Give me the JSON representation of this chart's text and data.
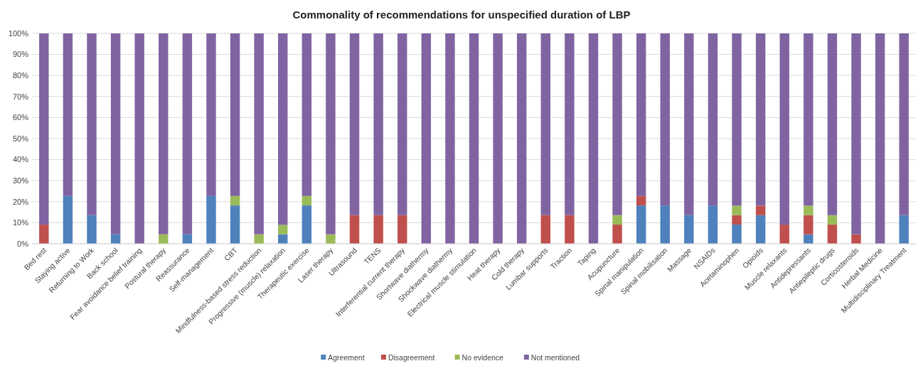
{
  "chart_data": {
    "type": "bar",
    "title": "Commonality of recommendations for unspecified duration of LBP",
    "stacked": true,
    "categories": [
      "Bed rest",
      "Staying active",
      "Returning to Work",
      "Back school",
      "Fear avoidance belief training",
      "Postural therapy",
      "Reassurance",
      "Self-management",
      "CBT",
      "Mindfulness-based stress reduction",
      "Progressive (muscle) relaxation",
      "Therapeutic exercise",
      "Laser therapy",
      "Ultrasound",
      "TENS",
      "Interferential current therapy",
      "Shortwave diathermy",
      "Shockwave diathermy",
      "Electrical muscle stimulation",
      "Heat therapy",
      "Cold therapy",
      "Lumbar supports",
      "Traction",
      "Taping",
      "Acupuncture",
      "Spinal manipulation",
      "Spinal mobilisation",
      "Massage",
      "NSAIDs",
      "Acetaminophen",
      "Opioids",
      "Muscle relaxants",
      "Antidepressants",
      "Antiepileptic drugs",
      "Corticosteroids",
      "Herbal Medicine",
      "Multidisciplinary Treatment"
    ],
    "series": [
      {
        "name": "Agreement",
        "color": "#4f81bd",
        "values": [
          0,
          22.7,
          13.6,
          4.5,
          0,
          0,
          4.5,
          22.7,
          18.2,
          0,
          4.5,
          18.2,
          0,
          0,
          0,
          0,
          0,
          0,
          0,
          0,
          0,
          0,
          0,
          0,
          0,
          18.2,
          18.2,
          13.6,
          18.2,
          9.1,
          13.6,
          0,
          4.5,
          0,
          0,
          0,
          13.6
        ]
      },
      {
        "name": "Disagreement",
        "color": "#c0504d",
        "values": [
          9.1,
          0,
          0,
          0,
          0,
          0,
          0,
          0,
          0,
          0,
          0,
          0,
          0,
          13.6,
          13.6,
          13.6,
          0,
          0,
          0,
          0,
          0,
          13.6,
          13.6,
          0,
          9.1,
          4.5,
          0,
          0,
          0,
          4.5,
          4.5,
          9.1,
          9.1,
          9.1,
          4.5,
          0,
          0
        ]
      },
      {
        "name": "No evidence",
        "color": "#9bbb59",
        "values": [
          0,
          0,
          0,
          0,
          0,
          4.5,
          0,
          0,
          4.5,
          4.5,
          4.5,
          4.5,
          4.5,
          0,
          0,
          0,
          0,
          0,
          0,
          0,
          0,
          0,
          0,
          0,
          4.5,
          0,
          0,
          0,
          0,
          4.5,
          0,
          0,
          4.5,
          4.5,
          0,
          0,
          0
        ]
      },
      {
        "name": "Not mentioned",
        "color": "#8064a2",
        "values": [
          90.9,
          77.3,
          86.4,
          95.5,
          100,
          95.5,
          95.5,
          77.3,
          77.3,
          95.5,
          91.0,
          77.3,
          95.5,
          86.4,
          86.4,
          86.4,
          100,
          100,
          100,
          100,
          100,
          86.4,
          86.4,
          100,
          86.4,
          77.3,
          81.8,
          86.4,
          81.8,
          81.9,
          81.9,
          90.9,
          81.9,
          86.4,
          95.5,
          100,
          86.4
        ]
      }
    ],
    "ylim": [
      0,
      100
    ],
    "yticks": [
      {
        "value": 0,
        "label": "0%"
      },
      {
        "value": 10,
        "label": "10%"
      },
      {
        "value": 20,
        "label": "20%"
      },
      {
        "value": 30,
        "label": "30%"
      },
      {
        "value": 40,
        "label": "40%"
      },
      {
        "value": 50,
        "label": "50%"
      },
      {
        "value": 60,
        "label": "60%"
      },
      {
        "value": 70,
        "label": "70%"
      },
      {
        "value": 80,
        "label": "80%"
      },
      {
        "value": 90,
        "label": "90%"
      },
      {
        "value": 100,
        "label": "100%"
      }
    ],
    "grid": "y",
    "legend": "bottom"
  }
}
